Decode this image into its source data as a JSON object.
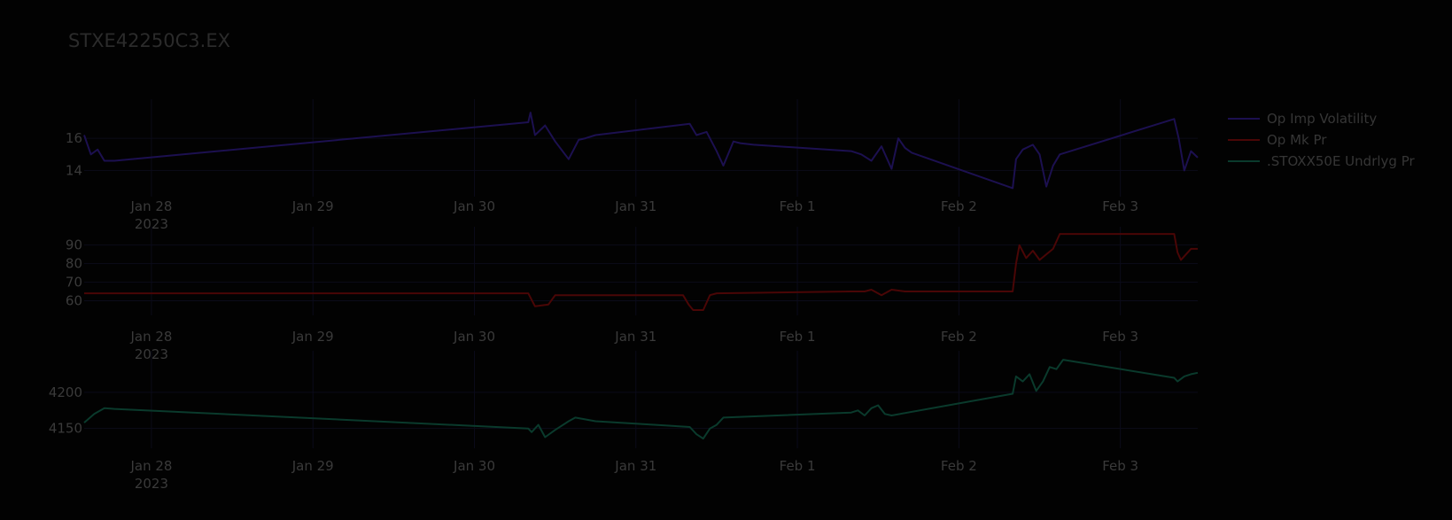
{
  "chart_data": {
    "type": "line",
    "title": "STXE42250C3.EX",
    "colors": [
      "#1c1050",
      "#4a0606",
      "#0a3a2c"
    ],
    "legend": {
      "placement": "top-right"
    },
    "grid": true,
    "x_ticks": [
      {
        "x": "2023-01-28",
        "label": "Jan 28",
        "sub": "2023"
      },
      {
        "x": "2023-01-29",
        "label": "Jan 29",
        "sub": ""
      },
      {
        "x": "2023-01-30",
        "label": "Jan 30",
        "sub": ""
      },
      {
        "x": "2023-01-31",
        "label": "Jan 31",
        "sub": ""
      },
      {
        "x": "2023-02-01",
        "label": "Feb 1",
        "sub": ""
      },
      {
        "x": "2023-02-02",
        "label": "Feb 2",
        "sub": ""
      },
      {
        "x": "2023-02-03",
        "label": "Feb 3",
        "sub": ""
      }
    ],
    "xlim": [
      "2023-01-27 14:00",
      "2023-02-03 11:30"
    ],
    "series": [
      {
        "name": "Op Imp Volatility",
        "ylim": [
          12.7,
          18.1
        ],
        "y_ticks": [
          14,
          16
        ],
        "x": [
          "2023-01-27 14:00",
          "2023-01-27 15:00",
          "2023-01-27 16:00",
          "2023-01-27 17:00",
          "2023-01-27 18:30",
          "2023-01-30 08:00",
          "2023-01-30 08:20",
          "2023-01-30 09:00",
          "2023-01-30 10:30",
          "2023-01-30 12:00",
          "2023-01-30 14:00",
          "2023-01-30 15:30",
          "2023-01-30 16:30",
          "2023-01-30 18:00",
          "2023-01-31 08:00",
          "2023-01-31 09:00",
          "2023-01-31 10:30",
          "2023-01-31 12:00",
          "2023-01-31 13:00",
          "2023-01-31 14:30",
          "2023-01-31 15:30",
          "2023-01-31 17:30",
          "2023-02-01 08:00",
          "2023-02-01 09:30",
          "2023-02-01 11:00",
          "2023-02-01 12:30",
          "2023-02-01 14:00",
          "2023-02-01 15:00",
          "2023-02-01 16:00",
          "2023-02-01 17:00",
          "2023-02-02 08:00",
          "2023-02-02 08:30",
          "2023-02-02 09:30",
          "2023-02-02 11:00",
          "2023-02-02 12:00",
          "2023-02-02 13:00",
          "2023-02-02 14:00",
          "2023-02-02 15:00",
          "2023-02-03 08:00",
          "2023-02-03 08:40",
          "2023-02-03 09:30",
          "2023-02-03 10:30",
          "2023-02-03 11:30"
        ],
        "values": [
          16.2,
          15.0,
          15.3,
          14.6,
          14.6,
          17.0,
          17.6,
          16.2,
          16.8,
          15.8,
          14.7,
          15.9,
          16.0,
          16.2,
          16.9,
          16.2,
          16.4,
          15.2,
          14.3,
          15.8,
          15.7,
          15.6,
          15.2,
          15.0,
          14.6,
          15.5,
          14.1,
          16.0,
          15.4,
          15.1,
          12.9,
          14.7,
          15.3,
          15.6,
          15.0,
          13.0,
          14.3,
          15.0,
          17.2,
          16.0,
          14.0,
          15.2,
          14.8
        ]
      },
      {
        "name": "Op Mk Pr",
        "ylim": [
          55,
          97
        ],
        "y_ticks": [
          60,
          70,
          80,
          90
        ],
        "x": [
          "2023-01-27 14:00",
          "2023-01-30 08:00",
          "2023-01-30 09:00",
          "2023-01-30 11:00",
          "2023-01-30 12:00",
          "2023-01-31 07:00",
          "2023-01-31 07:50",
          "2023-01-31 08:30",
          "2023-01-31 10:00",
          "2023-01-31 11:00",
          "2023-01-31 12:00",
          "2023-02-01 08:00",
          "2023-02-01 10:00",
          "2023-02-01 11:00",
          "2023-02-01 12:30",
          "2023-02-01 14:00",
          "2023-02-01 16:00",
          "2023-02-02 08:00",
          "2023-02-02 08:30",
          "2023-02-02 09:00",
          "2023-02-02 10:00",
          "2023-02-02 11:00",
          "2023-02-02 12:00",
          "2023-02-02 13:00",
          "2023-02-02 14:00",
          "2023-02-02 15:00",
          "2023-02-03 08:00",
          "2023-02-03 08:30",
          "2023-02-03 09:00",
          "2023-02-03 10:30",
          "2023-02-03 11:30"
        ],
        "values": [
          64,
          64,
          57,
          58,
          63,
          63,
          58,
          55,
          55,
          63,
          64,
          65,
          65,
          66,
          63,
          66,
          65,
          65,
          80,
          90,
          83,
          87,
          82,
          85,
          88,
          96,
          96,
          86,
          82,
          88,
          88
        ]
      },
      {
        "name": ".STOXX50E Undrlyg Pr",
        "ylim": [
          4130,
          4250
        ],
        "y_ticks": [
          4150,
          4200
        ],
        "x": [
          "2023-01-27 14:00",
          "2023-01-27 15:30",
          "2023-01-27 17:00",
          "2023-01-27 18:30",
          "2023-01-30 08:00",
          "2023-01-30 08:30",
          "2023-01-30 09:30",
          "2023-01-30 10:30",
          "2023-01-30 12:00",
          "2023-01-30 14:00",
          "2023-01-30 15:00",
          "2023-01-30 18:00",
          "2023-01-31 08:00",
          "2023-01-31 09:00",
          "2023-01-31 10:00",
          "2023-01-31 11:00",
          "2023-01-31 12:00",
          "2023-01-31 13:00",
          "2023-02-01 08:00",
          "2023-02-01 09:00",
          "2023-02-01 10:00",
          "2023-02-01 11:00",
          "2023-02-01 12:00",
          "2023-02-01 13:00",
          "2023-02-01 14:00",
          "2023-02-02 08:00",
          "2023-02-02 08:30",
          "2023-02-02 09:30",
          "2023-02-02 10:30",
          "2023-02-02 11:30",
          "2023-02-02 12:30",
          "2023-02-02 13:30",
          "2023-02-02 14:30",
          "2023-02-02 15:30",
          "2023-02-03 08:00",
          "2023-02-03 08:30",
          "2023-02-03 09:30",
          "2023-02-03 10:30",
          "2023-02-03 11:30"
        ],
        "values": [
          4158,
          4170,
          4178,
          4177,
          4150,
          4145,
          4155,
          4138,
          4148,
          4160,
          4165,
          4160,
          4152,
          4142,
          4136,
          4150,
          4155,
          4165,
          4172,
          4175,
          4168,
          4178,
          4182,
          4170,
          4168,
          4198,
          4222,
          4215,
          4225,
          4202,
          4215,
          4235,
          4232,
          4245,
          4220,
          4215,
          4222,
          4225,
          4227
        ]
      }
    ]
  }
}
